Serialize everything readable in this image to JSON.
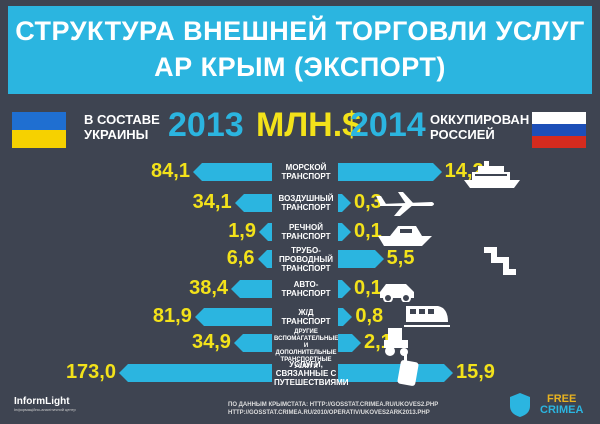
{
  "title": {
    "line1": "СТРУКТУРА ВНЕШНЕЙ ТОРГОВЛИ УСЛУГ",
    "line2": "АР КРЫМ (ЭКСПОРТ)"
  },
  "header": {
    "left_label_1": "В СОСТАВЕ",
    "left_label_2": "УКРАИНЫ",
    "left_year": "2013",
    "unit": "МЛН.$",
    "right_year": "2014",
    "right_label_1": "ОККУПИРОВАН",
    "right_label_2": "РОССИЕЙ"
  },
  "colors": {
    "accent": "#2bb5e0",
    "value": "#f3e21a",
    "background": "#3e4451"
  },
  "chart_data": {
    "type": "bar",
    "unit": "МЛН.$",
    "categories": [
      "МОРСКОЙ ТРАНСПОРТ",
      "ВОЗДУШНЫЙ ТРАНСПОРТ",
      "РЕЧНОЙ ТРАНСПОРТ",
      "ТРУБО-ПРОВОДНЫЙ ТРАНСПОРТ",
      "АВТО-ТРАНСПОРТ",
      "Ж/Д ТРАНСПОРТ",
      "ДРУГИЕ ВСПОМАГАТЕЛЬНЫЕ И ДОПОЛНИТЕЛЬНЫЕ ТРАНСПОРТНЫЕ УСЛУГИ",
      "УСЛУГИ, СВЯЗАННЫЕ С ПУТЕШЕСТВИЯМИ"
    ],
    "category_lines": [
      [
        "МОРСКОЙ",
        "ТРАНСПОРТ"
      ],
      [
        "ВОЗДУШНЫЙ",
        "ТРАНСПОРТ"
      ],
      [
        "РЕЧНОЙ",
        "ТРАНСПОРТ"
      ],
      [
        "ТРУБО-",
        "ПРОВОДНЫЙ",
        "ТРАНСПОРТ"
      ],
      [
        "АВТО-",
        "ТРАНСПОРТ"
      ],
      [
        "Ж/Д",
        "ТРАНСПОРТ"
      ],
      [
        "ДРУГИЕ",
        "ВСПОМАГАТЕЛЬНЫЕ И",
        "ДОПОЛНИТЕЛЬНЫЕ",
        "ТРАНСПОРТНЫЕ УСЛУГИ"
      ],
      [
        "УСЛУГИ,",
        "СВЯЗАННЫЕ С",
        "ПУТЕШЕСТВИЯМИ"
      ]
    ],
    "series": [
      {
        "name": "2013",
        "values": [
          84.1,
          34.1,
          1.9,
          6.6,
          38.4,
          81.9,
          34.9,
          173.0
        ],
        "labels": [
          "84,1",
          "34,1",
          "1,9",
          "6,6",
          "38,4",
          "81,9",
          "34,9",
          "173,0"
        ]
      },
      {
        "name": "2014",
        "values": [
          14.2,
          0.3,
          0.1,
          5.5,
          0.1,
          0.8,
          2.1,
          15.9
        ],
        "labels": [
          "14,2",
          "0,3",
          "0,1",
          "5,5",
          "0,1",
          "0,8",
          "2,1",
          "15,9"
        ]
      }
    ]
  },
  "footer": {
    "source_line1": "ПО ДАННЫМ КРЫМСТАТА: HTTP://GOSSTAT.CRIMEA.RU/UKOVES2.PHP",
    "source_line2": "HTTP://GOSSTAT.CRIMEA.RU/2010/OPERATIV/UKOVES2ARK2013.PHP",
    "logo_left": "InformLight",
    "logo_left_sub": "Інформаційно-аналітичний центр",
    "logo_right_1": "FREE",
    "logo_right_2": "CRIMEA"
  }
}
